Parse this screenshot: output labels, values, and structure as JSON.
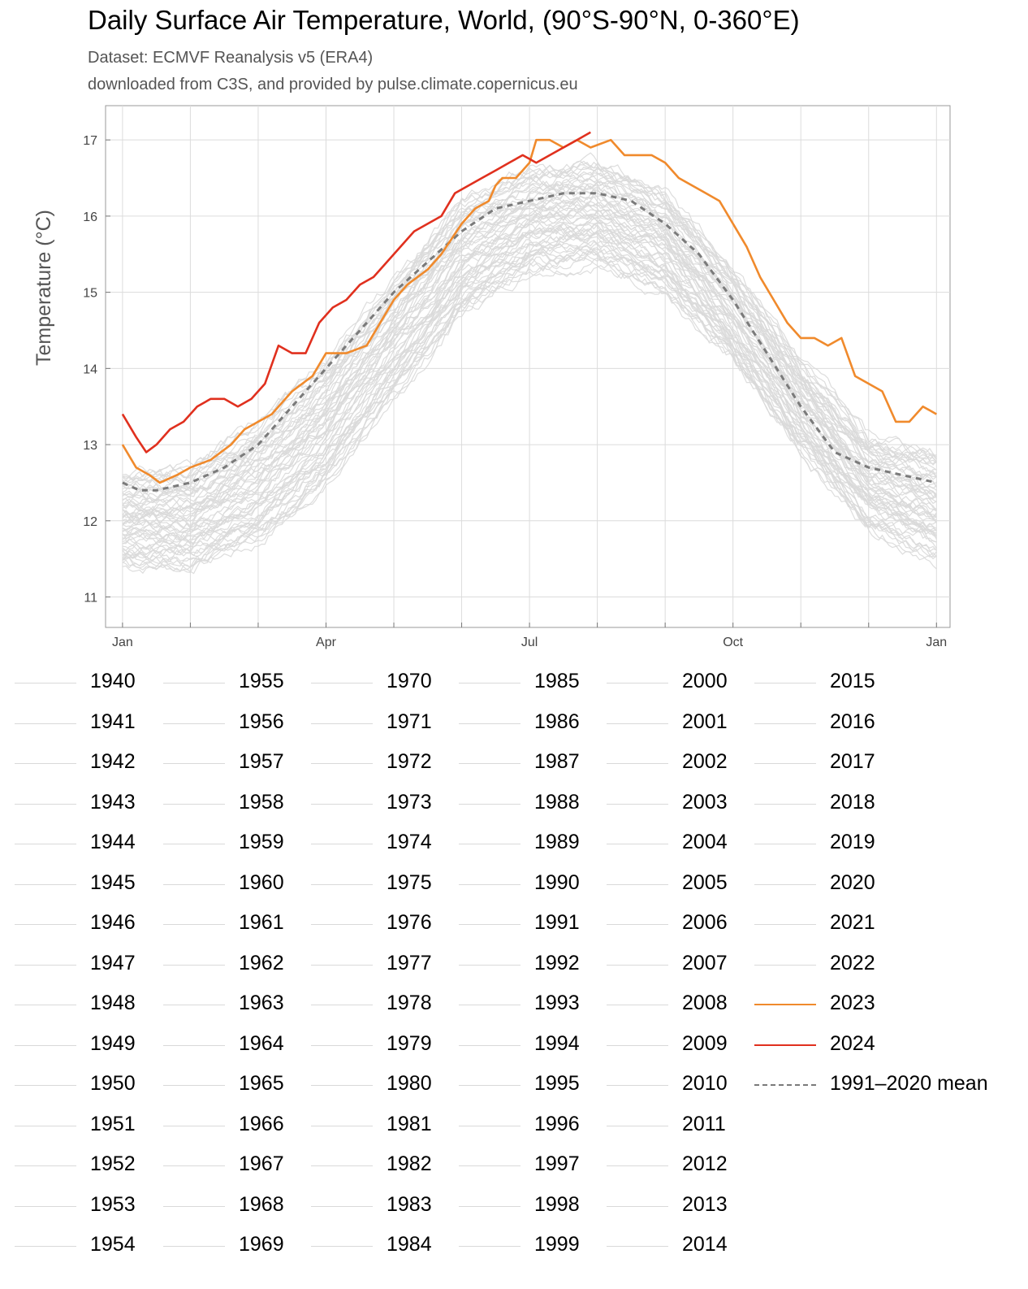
{
  "header": {
    "title": "Daily Surface Air Temperature, World, (90°S-90°N, 0-360°E)",
    "subtitle1": "Dataset: ECMVF Reanalysis v5 (ERA4)",
    "subtitle2": "downloaded from C3S, and provided by pulse.climate.copernicus.eu"
  },
  "colors": {
    "history": "#d9d9d9",
    "y2023": "#f08a2c",
    "y2024": "#e0301e",
    "mean": "#7a7a7a"
  },
  "chart_data": {
    "type": "line",
    "ylabel": "Temperature (°C)",
    "xlabel": "",
    "ylim": [
      10.6,
      17.45
    ],
    "xlim": [
      -0.25,
      12.2
    ],
    "yticks": [
      "11",
      "12",
      "13",
      "14",
      "15",
      "16",
      "17"
    ],
    "xticks": [
      {
        "label": "Jan",
        "x": 0
      },
      {
        "label": "Apr",
        "x": 3
      },
      {
        "label": "Jul",
        "x": 6
      },
      {
        "label": "Oct",
        "x": 9
      },
      {
        "label": "Jan",
        "x": 12
      }
    ],
    "grid": true,
    "legend_position": "bottom",
    "historical_band": {
      "name": "1940–2022",
      "x": [
        0,
        1,
        2,
        3,
        4,
        5,
        6,
        7,
        8,
        9,
        10,
        11,
        12
      ],
      "low": [
        11.4,
        11.4,
        11.7,
        12.5,
        13.6,
        14.7,
        15.3,
        15.4,
        15.0,
        14.1,
        12.9,
        11.9,
        11.5
      ],
      "high": [
        12.6,
        12.7,
        13.3,
        14.1,
        15.2,
        16.2,
        16.6,
        16.7,
        16.3,
        15.3,
        14.1,
        13.1,
        12.9
      ]
    },
    "series": [
      {
        "name": "1991–2020 mean",
        "style": "dashed",
        "x": [
          0,
          0.25,
          0.5,
          1,
          1.5,
          2,
          2.5,
          3,
          3.5,
          4,
          4.5,
          5,
          5.5,
          6,
          6.5,
          7,
          7.5,
          8,
          8.5,
          9,
          9.5,
          10,
          10.5,
          11,
          11.5,
          12
        ],
        "values": [
          12.5,
          12.4,
          12.4,
          12.5,
          12.7,
          13.0,
          13.5,
          14.0,
          14.5,
          15.0,
          15.4,
          15.8,
          16.1,
          16.2,
          16.3,
          16.3,
          16.2,
          15.9,
          15.5,
          14.9,
          14.2,
          13.5,
          12.9,
          12.7,
          12.6,
          12.5
        ]
      },
      {
        "name": "2023",
        "style": "solid",
        "x": [
          0,
          0.2,
          0.4,
          0.55,
          0.8,
          1.0,
          1.3,
          1.6,
          1.8,
          2.0,
          2.2,
          2.5,
          2.8,
          3.0,
          3.3,
          3.6,
          3.8,
          4.0,
          4.2,
          4.5,
          4.7,
          5.0,
          5.2,
          5.4,
          5.5,
          5.6,
          5.8,
          6.0,
          6.1,
          6.3,
          6.5,
          6.7,
          6.9,
          7.2,
          7.4,
          7.6,
          7.8,
          8.0,
          8.2,
          8.4,
          8.6,
          8.8,
          9.0,
          9.2,
          9.4,
          9.6,
          9.8,
          10.0,
          10.2,
          10.4,
          10.6,
          10.8,
          11.0,
          11.2,
          11.4,
          11.6,
          11.8,
          12.0
        ],
        "values": [
          13.0,
          12.7,
          12.6,
          12.5,
          12.6,
          12.7,
          12.8,
          13.0,
          13.2,
          13.3,
          13.4,
          13.7,
          13.9,
          14.2,
          14.2,
          14.3,
          14.6,
          14.9,
          15.1,
          15.3,
          15.5,
          15.9,
          16.1,
          16.2,
          16.4,
          16.5,
          16.5,
          16.7,
          17.0,
          17.0,
          16.9,
          17.0,
          16.9,
          17.0,
          16.8,
          16.8,
          16.8,
          16.7,
          16.5,
          16.4,
          16.3,
          16.2,
          15.9,
          15.6,
          15.2,
          14.9,
          14.6,
          14.4,
          14.4,
          14.3,
          14.4,
          13.9,
          13.8,
          13.7,
          13.3,
          13.3,
          13.5,
          13.4
        ]
      },
      {
        "name": "2024",
        "style": "solid",
        "x": [
          0,
          0.2,
          0.35,
          0.5,
          0.7,
          0.9,
          1.1,
          1.3,
          1.5,
          1.7,
          1.9,
          2.1,
          2.3,
          2.5,
          2.7,
          2.9,
          3.1,
          3.3,
          3.5,
          3.7,
          3.9,
          4.1,
          4.3,
          4.5,
          4.7,
          4.9,
          5.1,
          5.3,
          5.5,
          5.7,
          5.9,
          6.1,
          6.3,
          6.5,
          6.7,
          6.9
        ],
        "values": [
          13.4,
          13.1,
          12.9,
          13.0,
          13.2,
          13.3,
          13.5,
          13.6,
          13.6,
          13.5,
          13.6,
          13.8,
          14.3,
          14.2,
          14.2,
          14.6,
          14.8,
          14.9,
          15.1,
          15.2,
          15.4,
          15.6,
          15.8,
          15.9,
          16.0,
          16.3,
          16.4,
          16.5,
          16.6,
          16.7,
          16.8,
          16.7,
          16.8,
          16.9,
          17.0,
          17.1
        ]
      }
    ]
  },
  "legend": {
    "columns": [
      [
        "1940",
        "1941",
        "1942",
        "1943",
        "1944",
        "1945",
        "1946",
        "1947",
        "1948",
        "1949",
        "1950",
        "1951",
        "1952",
        "1953",
        "1954"
      ],
      [
        "1955",
        "1956",
        "1957",
        "1958",
        "1959",
        "1960",
        "1961",
        "1962",
        "1963",
        "1964",
        "1965",
        "1966",
        "1967",
        "1968",
        "1969"
      ],
      [
        "1970",
        "1971",
        "1972",
        "1973",
        "1974",
        "1975",
        "1976",
        "1977",
        "1978",
        "1979",
        "1980",
        "1981",
        "1982",
        "1983",
        "1984"
      ],
      [
        "1985",
        "1986",
        "1987",
        "1988",
        "1989",
        "1990",
        "1991",
        "1992",
        "1993",
        "1994",
        "1995",
        "1996",
        "1997",
        "1998",
        "1999"
      ],
      [
        "2000",
        "2001",
        "2002",
        "2003",
        "2004",
        "2005",
        "2006",
        "2007",
        "2008",
        "2009",
        "2010",
        "2011",
        "2012",
        "2013",
        "2014"
      ],
      [
        "2015",
        "2016",
        "2017",
        "2018",
        "2019",
        "2020",
        "2021",
        "2022",
        "2023",
        "2024",
        "1991–2020 mean"
      ]
    ]
  }
}
